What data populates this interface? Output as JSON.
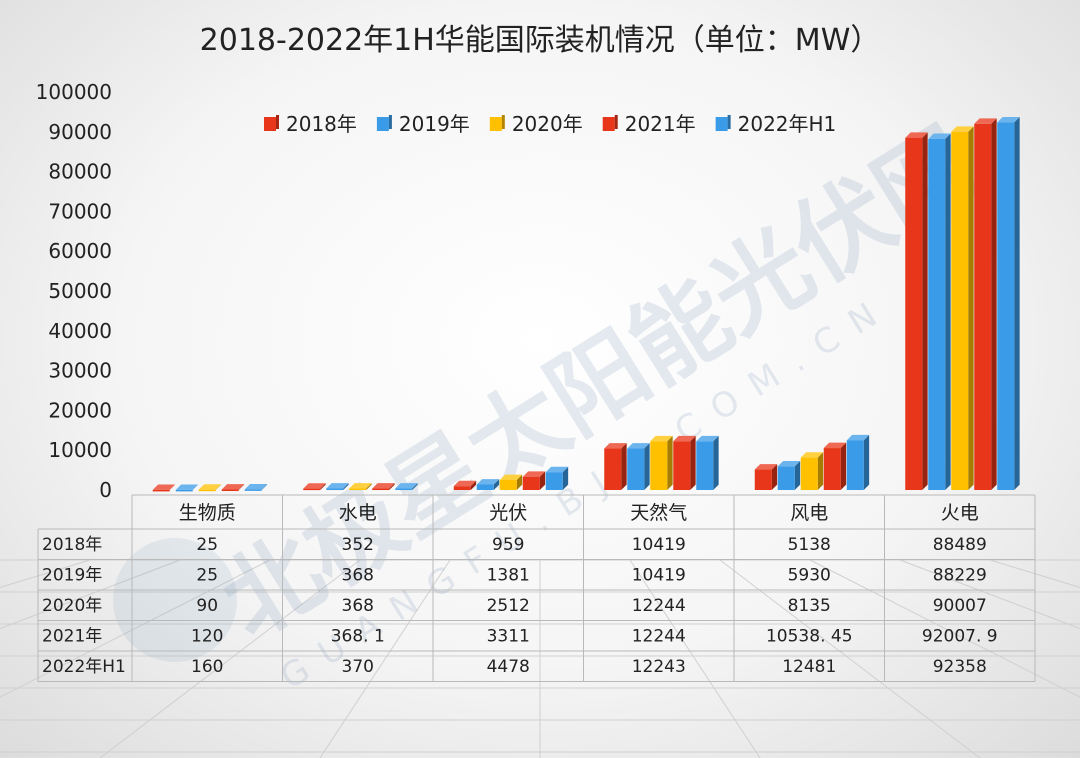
{
  "title": "2018-2022年1H华能国际装机情况（单位：MW）",
  "watermark": {
    "main": "北极星太阳能光伏网",
    "sub": "GUANGFU.BJX.COM.CN"
  },
  "chart_data": {
    "type": "bar",
    "title": "2018-2022年1H华能国际装机情况（单位：MW）",
    "categories": [
      "生物质",
      "水电",
      "光伏",
      "天然气",
      "风电",
      "火电"
    ],
    "series": [
      {
        "name": "2018年",
        "color": "#e8361a",
        "values": [
          25,
          352,
          959,
          10419,
          5138,
          88489
        ],
        "labels": [
          "25",
          "352",
          "959",
          "10419",
          "5138",
          "88489"
        ]
      },
      {
        "name": "2019年",
        "color": "#3a9be8",
        "values": [
          25,
          368,
          1381,
          10419,
          5930,
          88229
        ],
        "labels": [
          "25",
          "368",
          "1381",
          "10419",
          "5930",
          "88229"
        ]
      },
      {
        "name": "2020年",
        "color": "#ffc000",
        "values": [
          90,
          368,
          2512,
          12244,
          8135,
          90007
        ],
        "labels": [
          "90",
          "368",
          "2512",
          "12244",
          "8135",
          "90007"
        ]
      },
      {
        "name": "2021年",
        "color": "#e8361a",
        "values": [
          120,
          368.1,
          3311,
          12244,
          10538.45,
          92007.9
        ],
        "labels": [
          "120",
          "368. 1",
          "3311",
          "12244",
          "10538. 45",
          "92007. 9"
        ]
      },
      {
        "name": "2022年H1",
        "color": "#3a9be8",
        "values": [
          160,
          370,
          4478,
          12243,
          12481,
          92358
        ],
        "labels": [
          "160",
          "370",
          "4478",
          "12243",
          "12481",
          "92358"
        ]
      }
    ],
    "yticks": [
      "0",
      "10000",
      "20000",
      "30000",
      "40000",
      "50000",
      "60000",
      "70000",
      "80000",
      "90000",
      "100000"
    ],
    "ylim": [
      0,
      100000
    ],
    "grid": false,
    "legend": "top-center",
    "data_table": true
  }
}
